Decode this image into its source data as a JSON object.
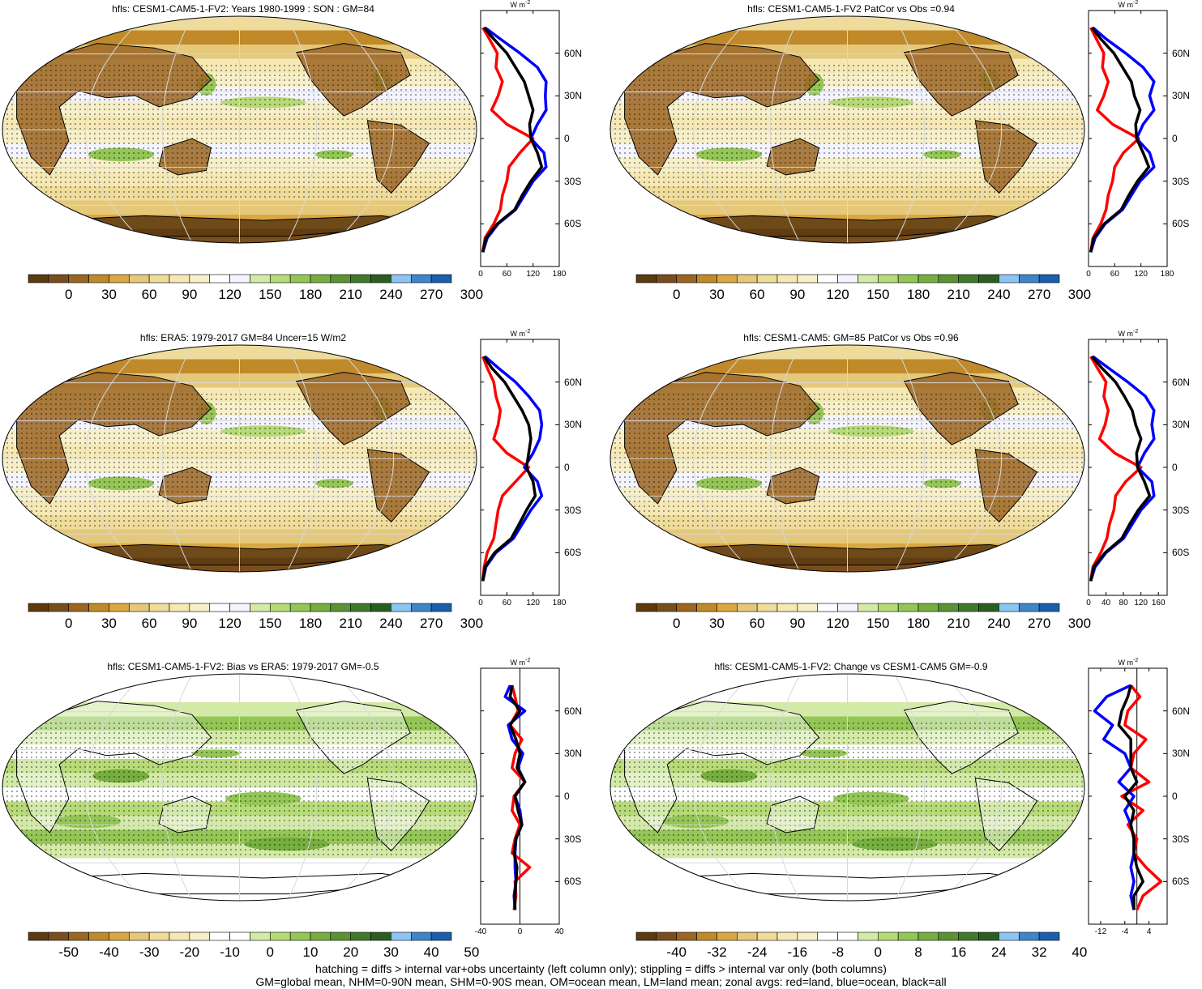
{
  "chart_data": [
    {
      "type": "heatmap",
      "title": "hfls: CESM1-CAM5-1-FV2: Years 1980-1999 : SON : GM=84",
      "colorbar_ticks": [
        "0",
        "30",
        "60",
        "90",
        "120",
        "150",
        "180",
        "210",
        "240",
        "270",
        "300"
      ],
      "palette": "absolute",
      "zonal_xticks": [
        "0",
        "60",
        "120",
        "180"
      ],
      "zonal_xrange": [
        0,
        180
      ],
      "lat_ticks": [
        "60N",
        "30N",
        "0",
        "30S",
        "60S"
      ],
      "unit": "W m",
      "series": [
        {
          "name": "land",
          "color": "#ff0000",
          "lat": [
            78,
            70,
            60,
            50,
            40,
            30,
            20,
            10,
            0,
            -10,
            -20,
            -30,
            -40,
            -50,
            -60,
            -70,
            -80
          ],
          "values": [
            5,
            20,
            38,
            35,
            50,
            40,
            25,
            60,
            120,
            90,
            65,
            60,
            50,
            45,
            30,
            10,
            5
          ]
        },
        {
          "name": "ocean",
          "color": "#0000ff",
          "lat": [
            78,
            70,
            60,
            50,
            40,
            30,
            20,
            10,
            0,
            -10,
            -20,
            -30,
            -40,
            -50,
            -60,
            -70,
            -80
          ],
          "values": [
            10,
            45,
            90,
            130,
            150,
            148,
            150,
            130,
            115,
            145,
            150,
            120,
            100,
            80,
            40,
            15,
            5
          ]
        },
        {
          "name": "all",
          "color": "#000000",
          "lat": [
            78,
            70,
            60,
            50,
            40,
            30,
            20,
            10,
            0,
            -10,
            -20,
            -30,
            -40,
            -50,
            -60,
            -70,
            -80
          ],
          "values": [
            8,
            30,
            60,
            80,
            100,
            110,
            120,
            112,
            115,
            130,
            140,
            115,
            95,
            78,
            38,
            12,
            5
          ]
        }
      ]
    },
    {
      "type": "heatmap",
      "title": "hfls: CESM1-CAM5-1-FV2 PatCor vs Obs =0.94",
      "colorbar_ticks": [
        "0",
        "30",
        "60",
        "90",
        "120",
        "150",
        "180",
        "210",
        "240",
        "270",
        "300"
      ],
      "palette": "absolute",
      "zonal_xticks": [
        "0",
        "60",
        "120",
        "180"
      ],
      "zonal_xrange": [
        0,
        180
      ],
      "lat_ticks": [
        "60N",
        "30N",
        "0",
        "30S",
        "60S"
      ],
      "unit": "W m",
      "series": [
        {
          "name": "land",
          "color": "#ff0000",
          "lat": [
            78,
            70,
            60,
            50,
            40,
            30,
            20,
            10,
            0,
            -10,
            -20,
            -30,
            -40,
            -50,
            -60,
            -70,
            -80
          ],
          "values": [
            5,
            18,
            35,
            32,
            45,
            35,
            20,
            55,
            115,
            80,
            60,
            55,
            45,
            40,
            28,
            10,
            5
          ]
        },
        {
          "name": "ocean",
          "color": "#0000ff",
          "lat": [
            78,
            70,
            60,
            50,
            40,
            30,
            20,
            10,
            0,
            -10,
            -20,
            -30,
            -40,
            -50,
            -60,
            -70,
            -80
          ],
          "values": [
            10,
            40,
            85,
            125,
            150,
            140,
            150,
            125,
            110,
            140,
            150,
            118,
            98,
            78,
            38,
            15,
            5
          ]
        },
        {
          "name": "all",
          "color": "#000000",
          "lat": [
            78,
            70,
            60,
            50,
            40,
            30,
            20,
            10,
            0,
            -10,
            -20,
            -30,
            -40,
            -50,
            -60,
            -70,
            -80
          ],
          "values": [
            8,
            28,
            58,
            78,
            98,
            105,
            118,
            108,
            110,
            125,
            138,
            112,
            92,
            75,
            36,
            12,
            5
          ]
        }
      ]
    },
    {
      "type": "heatmap",
      "title": "hfls: ERA5: 1979-2017 GM=84 Uncer=15 W/m2",
      "colorbar_ticks": [
        "0",
        "30",
        "60",
        "90",
        "120",
        "150",
        "180",
        "210",
        "240",
        "270",
        "300"
      ],
      "palette": "absolute",
      "zonal_xticks": [
        "0",
        "60",
        "120",
        "180"
      ],
      "zonal_xrange": [
        0,
        180
      ],
      "lat_ticks": [
        "60N",
        "30N",
        "0",
        "30S",
        "60S"
      ],
      "unit": "W m",
      "series": [
        {
          "name": "land",
          "color": "#ff0000",
          "lat": [
            78,
            70,
            60,
            50,
            40,
            30,
            20,
            10,
            0,
            -10,
            -20,
            -30,
            -40,
            -50,
            -60,
            -70,
            -80
          ],
          "values": [
            5,
            15,
            30,
            35,
            45,
            40,
            30,
            60,
            110,
            80,
            50,
            40,
            35,
            30,
            15,
            8,
            5
          ]
        },
        {
          "name": "ocean",
          "color": "#0000ff",
          "lat": [
            78,
            70,
            60,
            50,
            40,
            30,
            20,
            10,
            0,
            -10,
            -20,
            -30,
            -40,
            -50,
            -60,
            -70,
            -80
          ],
          "values": [
            10,
            40,
            80,
            110,
            135,
            140,
            135,
            120,
            100,
            130,
            140,
            115,
            95,
            75,
            35,
            12,
            5
          ]
        },
        {
          "name": "all",
          "color": "#000000",
          "lat": [
            78,
            70,
            60,
            50,
            40,
            30,
            20,
            10,
            0,
            -10,
            -20,
            -30,
            -40,
            -50,
            -60,
            -70,
            -80
          ],
          "values": [
            8,
            25,
            55,
            75,
            95,
            110,
            115,
            110,
            105,
            120,
            125,
            105,
            88,
            70,
            32,
            10,
            5
          ]
        }
      ]
    },
    {
      "type": "heatmap",
      "title": "hfls: CESM1-CAM5: GM=85 PatCor vs Obs =0.96",
      "colorbar_ticks": [
        "0",
        "30",
        "60",
        "90",
        "120",
        "150",
        "180",
        "210",
        "240",
        "270",
        "300"
      ],
      "palette": "absolute",
      "zonal_xticks": [
        "0",
        "40",
        "80",
        "120",
        "160"
      ],
      "zonal_xrange": [
        0,
        180
      ],
      "lat_ticks": [
        "60N",
        "30N",
        "0",
        "30S",
        "60S"
      ],
      "unit": "W m",
      "series": [
        {
          "name": "land",
          "color": "#ff0000",
          "lat": [
            78,
            70,
            60,
            50,
            40,
            30,
            20,
            10,
            0,
            -10,
            -20,
            -30,
            -40,
            -50,
            -60,
            -70,
            -80
          ],
          "values": [
            5,
            20,
            40,
            35,
            45,
            38,
            25,
            60,
            120,
            85,
            62,
            58,
            48,
            42,
            28,
            10,
            5
          ]
        },
        {
          "name": "ocean",
          "color": "#0000ff",
          "lat": [
            78,
            70,
            60,
            50,
            40,
            30,
            20,
            10,
            0,
            -10,
            -20,
            -30,
            -40,
            -50,
            -60,
            -70,
            -80
          ],
          "values": [
            10,
            45,
            90,
            130,
            150,
            145,
            150,
            128,
            112,
            145,
            150,
            120,
            100,
            80,
            40,
            15,
            5
          ]
        },
        {
          "name": "all",
          "color": "#000000",
          "lat": [
            78,
            70,
            60,
            50,
            40,
            30,
            20,
            10,
            0,
            -10,
            -20,
            -30,
            -40,
            -50,
            -60,
            -70,
            -80
          ],
          "values": [
            8,
            30,
            62,
            82,
            100,
            108,
            120,
            110,
            112,
            128,
            140,
            114,
            94,
            76,
            38,
            12,
            5
          ]
        }
      ]
    },
    {
      "type": "heatmap",
      "title": "hfls: CESM1-CAM5-1-FV2: Bias vs ERA5: 1979-2017  GM=-0.5",
      "colorbar_ticks": [
        "-50",
        "-40",
        "-30",
        "-20",
        "-10",
        "0",
        "10",
        "20",
        "30",
        "40",
        "50"
      ],
      "palette": "diff",
      "zonal_xticks": [
        "-40",
        "0",
        "40"
      ],
      "zonal_xrange": [
        -40,
        40
      ],
      "lat_ticks": [
        "60N",
        "30N",
        "0",
        "30S",
        "60S"
      ],
      "unit": "W m",
      "series": [
        {
          "name": "land",
          "color": "#ff0000",
          "lat": [
            78,
            70,
            60,
            50,
            40,
            30,
            20,
            10,
            0,
            -10,
            -20,
            -30,
            -40,
            -50,
            -60,
            -70,
            -80
          ],
          "values": [
            -8,
            -5,
            -2,
            -10,
            2,
            -5,
            -8,
            5,
            -6,
            -8,
            0,
            -5,
            -8,
            10,
            -5,
            -4,
            -6
          ]
        },
        {
          "name": "ocean",
          "color": "#0000ff",
          "lat": [
            78,
            70,
            60,
            50,
            40,
            30,
            20,
            10,
            0,
            -10,
            -20,
            -30,
            -40,
            -50,
            -60,
            -70,
            -80
          ],
          "values": [
            -10,
            -15,
            5,
            -12,
            -8,
            3,
            -2,
            5,
            -5,
            0,
            2,
            -4,
            -5,
            -5,
            -4,
            -6,
            -5
          ]
        },
        {
          "name": "all",
          "color": "#000000",
          "lat": [
            78,
            70,
            60,
            50,
            40,
            30,
            20,
            10,
            0,
            -10,
            -20,
            -30,
            -40,
            -50,
            -60,
            -70,
            -80
          ],
          "values": [
            -8,
            -10,
            0,
            -10,
            -4,
            0,
            -3,
            5,
            -5,
            -2,
            2,
            -4,
            -6,
            -3,
            -4,
            -5,
            -5
          ]
        }
      ]
    },
    {
      "type": "heatmap",
      "title": "hfls: CESM1-CAM5-1-FV2: Change vs CESM1-CAM5 GM=-0.9",
      "colorbar_ticks": [
        "-40",
        "-32",
        "-24",
        "-16",
        "-8",
        "0",
        "8",
        "16",
        "24",
        "32",
        "40"
      ],
      "palette": "diff",
      "zonal_xticks": [
        "-12",
        "-4",
        "4"
      ],
      "zonal_xrange": [
        -16,
        10
      ],
      "lat_ticks": [
        "60N",
        "30N",
        "0",
        "30S",
        "60S"
      ],
      "unit": "W m",
      "series": [
        {
          "name": "land",
          "color": "#ff0000",
          "lat": [
            78,
            70,
            60,
            50,
            40,
            30,
            20,
            10,
            0,
            -10,
            -20,
            -30,
            -40,
            -50,
            -60,
            -70,
            -80
          ],
          "values": [
            -2,
            1,
            -3,
            -4,
            3,
            -1,
            -2,
            4,
            -5,
            2,
            -3,
            0,
            -1,
            3,
            8,
            2,
            0
          ]
        },
        {
          "name": "ocean",
          "color": "#0000ff",
          "lat": [
            78,
            70,
            60,
            50,
            40,
            30,
            20,
            10,
            0,
            -10,
            -20,
            -30,
            -40,
            -50,
            -60,
            -70,
            -80
          ],
          "values": [
            -2,
            -10,
            -14,
            -8,
            -11,
            -4,
            -2,
            -6,
            -1,
            -4,
            -2,
            -1,
            -1,
            -2,
            -1,
            -2,
            -1
          ]
        },
        {
          "name": "all",
          "color": "#000000",
          "lat": [
            78,
            70,
            60,
            50,
            40,
            30,
            20,
            10,
            0,
            -10,
            -20,
            -30,
            -40,
            -50,
            -60,
            -70,
            -80
          ],
          "values": [
            -2,
            -3,
            -5,
            -6,
            -2,
            -2,
            -2,
            0,
            -4,
            -1,
            -2,
            -1,
            -1,
            0,
            2,
            -1,
            -1
          ]
        }
      ]
    }
  ],
  "palettes": {
    "absolute": [
      "#5c3a12",
      "#7a4e1a",
      "#9b6523",
      "#c08a2b",
      "#d9a843",
      "#e5c87a",
      "#efdc9c",
      "#f5e8b5",
      "#f7efc9",
      "#ffffff",
      "#f4f4ff",
      "#d3eaa7",
      "#b7da78",
      "#94c657",
      "#77ae40",
      "#5a9332",
      "#3f7a2a",
      "#2b5f22",
      "#8cc5f2",
      "#3d86cc",
      "#1a5fad"
    ],
    "diff": [
      "#5c3a12",
      "#7a4e1a",
      "#9b6523",
      "#c08a2b",
      "#d9a843",
      "#e5c87a",
      "#efdc9c",
      "#f5e8b5",
      "#f7efc9",
      "#ffffff",
      "#ffffff",
      "#d3eaa7",
      "#b7da78",
      "#94c657",
      "#77ae40",
      "#5a9332",
      "#3f7a2a",
      "#2b5f22",
      "#8cc5f2",
      "#3d86cc",
      "#1a5fad"
    ]
  },
  "footer": {
    "line1": "hatching = diffs > internal var+obs uncertainty (left column only); stippling = diffs > internal var only (both columns)",
    "line2": "GM=global mean, NHM=0-90N mean, SHM=0-90S mean, OM=ocean mean, LM=land mean; zonal avgs: red=land, blue=ocean, black=all"
  }
}
